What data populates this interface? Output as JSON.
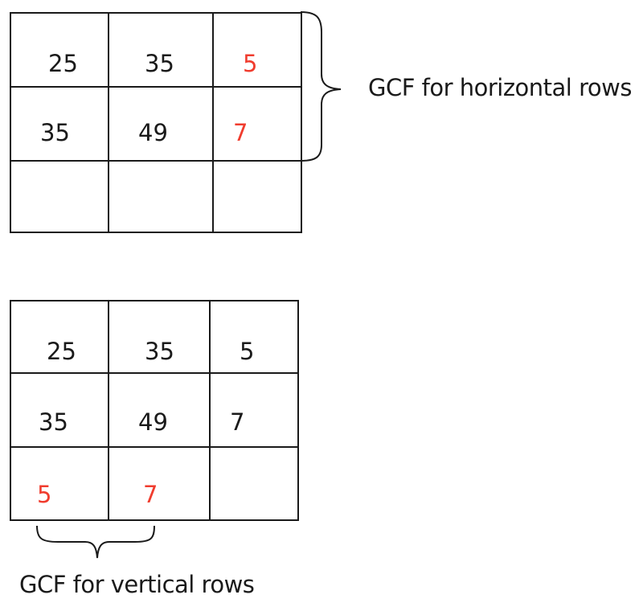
{
  "top_grid": {
    "rows": [
      [
        {
          "text": "25",
          "color": "#1a1a1a"
        },
        {
          "text": "35",
          "color": "#1a1a1a"
        },
        {
          "text": "5",
          "color": "#f03c2e"
        }
      ],
      [
        {
          "text": "35",
          "color": "#1a1a1a"
        },
        {
          "text": "49",
          "color": "#1a1a1a"
        },
        {
          "text": "7",
          "color": "#f03c2e"
        }
      ],
      [
        {
          "text": "",
          "color": "#1a1a1a"
        },
        {
          "text": "",
          "color": "#1a1a1a"
        },
        {
          "text": "",
          "color": "#1a1a1a"
        }
      ]
    ],
    "label": "GCF for horizontal rows"
  },
  "bottom_grid": {
    "rows": [
      [
        {
          "text": "25",
          "color": "#1a1a1a"
        },
        {
          "text": "35",
          "color": "#1a1a1a"
        },
        {
          "text": "5",
          "color": "#1a1a1a"
        }
      ],
      [
        {
          "text": "35",
          "color": "#1a1a1a"
        },
        {
          "text": "49",
          "color": "#1a1a1a"
        },
        {
          "text": "7",
          "color": "#1a1a1a"
        }
      ],
      [
        {
          "text": "5",
          "color": "#f03c2e"
        },
        {
          "text": "7",
          "color": "#f03c2e"
        },
        {
          "text": "",
          "color": "#1a1a1a"
        }
      ]
    ],
    "label": "GCF for vertical rows"
  }
}
